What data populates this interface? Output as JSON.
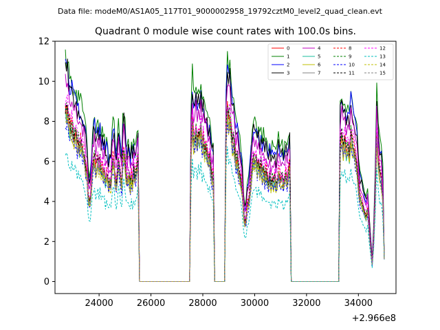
{
  "header": {
    "data_file": "Data file: modeM0/AS1A05_117T01_9000002958_19792cztM0_level2_quad_clean.evt"
  },
  "chart_data": {
    "type": "line",
    "title": "Quadrant 0 module wise count rates with 100.0s bins.",
    "xlabel": "",
    "ylabel": "",
    "x_offset_label": "+2.966e8",
    "xlim": [
      22300,
      35450
    ],
    "ylim": [
      -0.6,
      12.0
    ],
    "xticks": [
      24000,
      26000,
      28000,
      30000,
      32000,
      34000
    ],
    "xtick_labels": [
      "24000",
      "26000",
      "28000",
      "30000",
      "32000",
      "34000"
    ],
    "yticks": [
      0,
      2,
      4,
      6,
      8,
      10,
      12
    ],
    "ytick_labels": [
      "0",
      "2",
      "4",
      "6",
      "8",
      "10",
      "12"
    ],
    "grid": false,
    "legend_position": "top-right",
    "segments": [
      {
        "x0": 22700,
        "x1": 25500,
        "profile": [
          1.0,
          0.98,
          1.0,
          0.93,
          0.9,
          0.88,
          0.9,
          0.86,
          0.84,
          0.86,
          0.83,
          0.8,
          0.82,
          0.78,
          0.8,
          0.78,
          0.75,
          0.74,
          0.7,
          0.66,
          0.62,
          0.5,
          0.46,
          0.48,
          0.55,
          0.66,
          0.7,
          0.72,
          0.66,
          0.68,
          0.72,
          0.66,
          0.7,
          0.64,
          0.66,
          0.62,
          0.64,
          0.58,
          0.62,
          0.6,
          0.55,
          0.58,
          0.56,
          0.66,
          0.7,
          0.68,
          0.6,
          0.55,
          0.62,
          0.7,
          0.66,
          0.6,
          0.56,
          0.72,
          0.76,
          0.7,
          0.62,
          0.58,
          0.62,
          0.6,
          0.56,
          0.62,
          0.58,
          0.65,
          0.6,
          0.62,
          0.66,
          0.7
        ]
      },
      {
        "x0": 27550,
        "x1": 28400,
        "profile": [
          0.76,
          0.92,
          0.82,
          0.84,
          0.88,
          0.8,
          0.86,
          0.84,
          0.9,
          0.8,
          0.82,
          0.76,
          0.78,
          0.74,
          0.7,
          0.72,
          0.66,
          0.6,
          0.62
        ]
      },
      {
        "x0": 28900,
        "x1": 31350,
        "profile": [
          0.88,
          1.0,
          0.94,
          0.96,
          0.88,
          0.8,
          0.82,
          0.76,
          0.7,
          0.72,
          0.64,
          0.62,
          0.58,
          0.52,
          0.4,
          0.34,
          0.36,
          0.44,
          0.46,
          0.52,
          0.6,
          0.68,
          0.72,
          0.7,
          0.72,
          0.66,
          0.7,
          0.64,
          0.68,
          0.62,
          0.66,
          0.6,
          0.64,
          0.6,
          0.58,
          0.62,
          0.56,
          0.6,
          0.58,
          0.62,
          0.56,
          0.58,
          0.64,
          0.6,
          0.58,
          0.62,
          0.56,
          0.6,
          0.62,
          0.58,
          0.64,
          0.68
        ]
      },
      {
        "x0": 33300,
        "x1": 35000,
        "profile": [
          0.8,
          0.84,
          0.78,
          0.82,
          0.76,
          0.8,
          0.74,
          0.86,
          0.8,
          0.76,
          0.72,
          0.68,
          0.56,
          0.48,
          0.46,
          0.42,
          0.4,
          0.38,
          0.42,
          0.3,
          0.2,
          0.1,
          0.24,
          0.5,
          0.84,
          0.7,
          0.62,
          0.58,
          0.5,
          0.1
        ]
      }
    ],
    "gap_value": 0.0,
    "series": [
      {
        "name": "0",
        "color": "#ff0000",
        "dash": false,
        "level": 8.6
      },
      {
        "name": "1",
        "color": "#008000",
        "dash": false,
        "level": 11.3
      },
      {
        "name": "2",
        "color": "#0000ff",
        "dash": false,
        "level": 10.8
      },
      {
        "name": "3",
        "color": "#000000",
        "dash": false,
        "level": 10.6
      },
      {
        "name": "4",
        "color": "#bf00bf",
        "dash": false,
        "level": 10.0
      },
      {
        "name": "5",
        "color": "#1abc9c",
        "dash": false,
        "level": 8.3
      },
      {
        "name": "6",
        "color": "#bfbf00",
        "dash": false,
        "level": 8.1
      },
      {
        "name": "7",
        "color": "#808080",
        "dash": false,
        "level": 8.5
      },
      {
        "name": "8",
        "color": "#ff0000",
        "dash": true,
        "level": 8.9
      },
      {
        "name": "9",
        "color": "#008000",
        "dash": true,
        "level": 8.8
      },
      {
        "name": "10",
        "color": "#0000ff",
        "dash": true,
        "level": 8.0
      },
      {
        "name": "11",
        "color": "#000000",
        "dash": true,
        "level": 8.7
      },
      {
        "name": "12",
        "color": "#ff00ff",
        "dash": true,
        "level": 9.1
      },
      {
        "name": "13",
        "color": "#00bfbf",
        "dash": true,
        "level": 6.5
      },
      {
        "name": "14",
        "color": "#bfbf00",
        "dash": true,
        "level": 8.2
      },
      {
        "name": "15",
        "color": "#808080",
        "dash": true,
        "level": 8.4
      }
    ]
  }
}
